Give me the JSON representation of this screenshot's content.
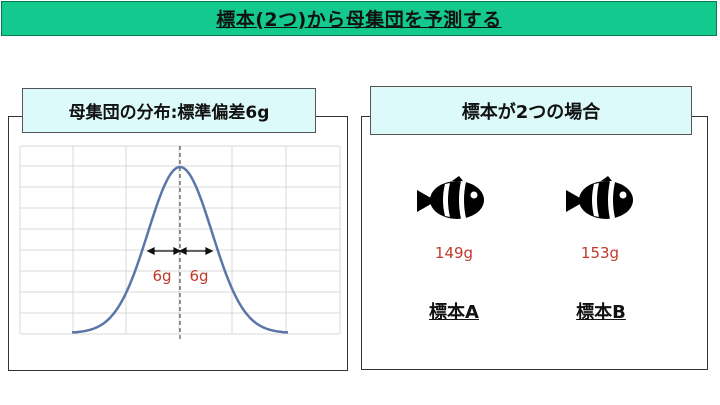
{
  "header": {
    "title": "標本(2つ)から母集団を予測する"
  },
  "population": {
    "label": "母集団の分布:標準偏差6g",
    "sd_left_label": "6g",
    "sd_right_label": "6g"
  },
  "samples": {
    "label": "標本が2つの場合",
    "items": [
      {
        "name": "標本A",
        "weight": "149g",
        "icon": "fish-icon"
      },
      {
        "name": "標本B",
        "weight": "153g",
        "icon": "fish-icon"
      }
    ]
  },
  "colors": {
    "header_bg": "#13c98e",
    "label_bg": "#ddfafa",
    "curve": "#5a76a8",
    "weight_text": "#c0392b"
  }
}
